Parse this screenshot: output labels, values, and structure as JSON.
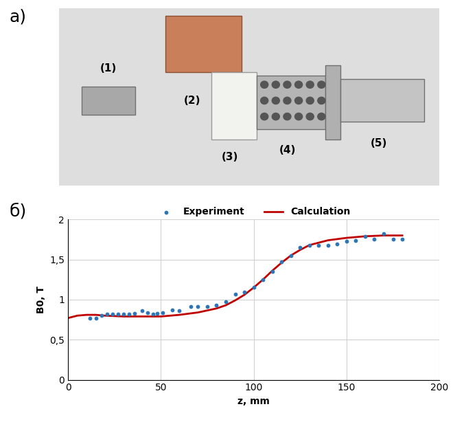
{
  "panel_labels": [
    "а)",
    "б)"
  ],
  "photo": {
    "labels": [
      "(1)",
      "(2)",
      "(3)",
      "(4)",
      "(5)"
    ]
  },
  "chart_data": {
    "type": "line",
    "xlabel": "z, mm",
    "ylabel": "B0, T",
    "series": [
      {
        "name": "Experiment",
        "type": "scatter",
        "color": "#2e75b6",
        "marker": "o",
        "x": [
          12,
          15,
          18,
          21,
          24,
          27,
          30,
          33,
          36,
          40,
          43,
          46,
          48,
          51,
          56,
          60,
          66,
          70,
          75,
          80,
          85,
          90,
          95,
          100,
          105,
          110,
          115,
          120,
          125,
          130,
          135,
          140,
          145,
          150,
          155,
          160,
          165,
          170,
          175,
          180
        ],
        "values": [
          0.77,
          0.77,
          0.8,
          0.82,
          0.82,
          0.82,
          0.82,
          0.82,
          0.83,
          0.86,
          0.84,
          0.82,
          0.83,
          0.84,
          0.87,
          0.86,
          0.91,
          0.91,
          0.91,
          0.93,
          0.97,
          1.07,
          1.09,
          1.15,
          1.25,
          1.35,
          1.47,
          1.55,
          1.65,
          1.68,
          1.68,
          1.68,
          1.69,
          1.73,
          1.74,
          1.79,
          1.75,
          1.82,
          1.75,
          1.75
        ]
      },
      {
        "name": "Calculation",
        "type": "line",
        "color": "#c00000",
        "line_style": "solid",
        "x": [
          0,
          5,
          10,
          15,
          20,
          30,
          40,
          50,
          60,
          70,
          80,
          85,
          90,
          95,
          100,
          105,
          110,
          115,
          120,
          125,
          130,
          140,
          150,
          160,
          170,
          180
        ],
        "values": [
          0.77,
          0.8,
          0.81,
          0.81,
          0.8,
          0.79,
          0.79,
          0.79,
          0.81,
          0.84,
          0.89,
          0.93,
          0.99,
          1.06,
          1.15,
          1.25,
          1.36,
          1.46,
          1.55,
          1.62,
          1.68,
          1.74,
          1.77,
          1.79,
          1.8,
          1.8
        ]
      }
    ],
    "xlim": [
      0,
      200
    ],
    "xticks": [
      0,
      50,
      100,
      150,
      200
    ],
    "ylim": [
      0,
      2
    ],
    "yticks": [
      0,
      {
        "value": 0.5,
        "label": "0,5"
      },
      1,
      {
        "value": 1.5,
        "label": "1,5"
      },
      2
    ],
    "grid": true,
    "legend": "upper center"
  }
}
